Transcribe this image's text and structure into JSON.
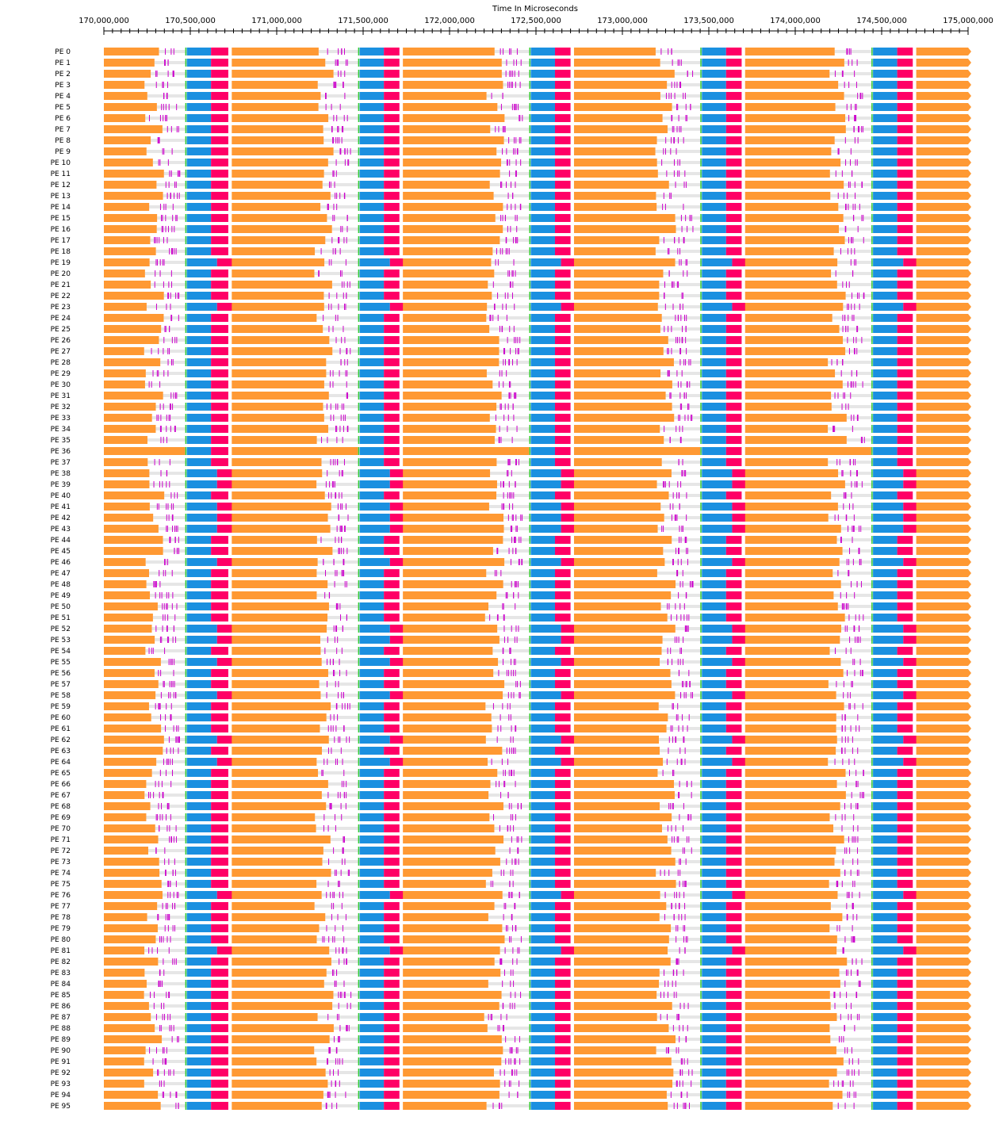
{
  "chart_data": {
    "type": "timeline",
    "title": "",
    "xlabel": "Time In Microseconds",
    "ylabel": "",
    "xlim": [
      170000000,
      175000000
    ],
    "x_ticks": [
      170000000,
      170500000,
      171000000,
      171500000,
      172000000,
      172500000,
      173000000,
      173500000,
      174000000,
      174500000,
      175000000
    ],
    "x_tick_labels": [
      "170,000,000",
      "170,500,000",
      "171,000,000",
      "171,500,000",
      "172,000,000",
      "172,500,000",
      "173,000,000",
      "173,500,000",
      "174,000,000",
      "174,500,000",
      "175,000,000"
    ],
    "minor_ticks_per_major": 10,
    "grid": false,
    "legend": "none",
    "processor_count": 96,
    "processor_label_prefix": "PE ",
    "colors": {
      "compute": "#FF9933",
      "blue": "#1A90E0",
      "red": "#FF0066",
      "idle": "#E6E6E6",
      "mark": "#CC00CC",
      "green": "#33CC33"
    },
    "cycles": [
      {
        "start": 170000000,
        "compute_end_base": 170290000,
        "blue_start": 170480000,
        "blue_end": 170620000,
        "red_end": 170720000
      },
      {
        "start": 170740000,
        "compute_end_base": 171270000,
        "blue_start": 171480000,
        "blue_end": 171620000,
        "red_end": 171710000
      },
      {
        "start": 171730000,
        "compute_end_base": 172260000,
        "blue_start": 172470000,
        "blue_end": 172610000,
        "red_end": 172700000
      },
      {
        "start": 172720000,
        "compute_end_base": 173250000,
        "blue_start": 173460000,
        "blue_end": 173600000,
        "red_end": 173690000
      },
      {
        "start": 173710000,
        "compute_end_base": 174240000,
        "blue_start": 174450000,
        "blue_end": 174590000,
        "red_end": 174680000
      },
      {
        "start": 174700000,
        "compute_end_base": 175000000,
        "blue_start": null,
        "blue_end": null,
        "red_end": null
      }
    ]
  }
}
